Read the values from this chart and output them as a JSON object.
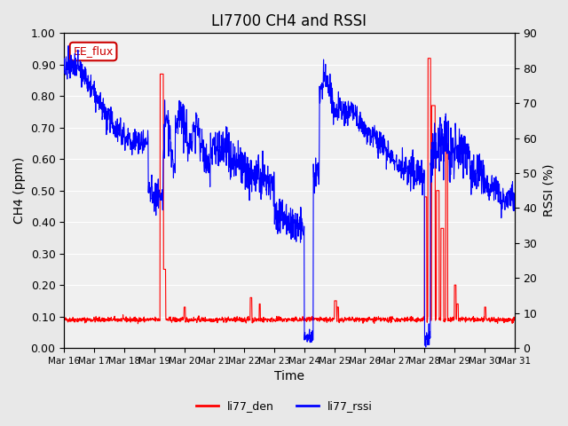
{
  "title": "LI7700 CH4 and RSSI",
  "xlabel": "Time",
  "ylabel_left": "CH4 (ppm)",
  "ylabel_right": "RSSI (%)",
  "ylim_left": [
    0.0,
    1.0
  ],
  "ylim_right": [
    0,
    90
  ],
  "yticks_left": [
    0.0,
    0.1,
    0.2,
    0.3,
    0.4,
    0.5,
    0.6,
    0.7,
    0.8,
    0.9,
    1.0
  ],
  "yticks_right": [
    0,
    10,
    20,
    30,
    40,
    50,
    60,
    70,
    80,
    90
  ],
  "xtick_labels": [
    "Mar 16",
    "Mar 17",
    "Mar 18",
    "Mar 19",
    "Mar 20",
    "Mar 21",
    "Mar 22",
    "Mar 23",
    "Mar 24",
    "Mar 25",
    "Mar 26",
    "Mar 27",
    "Mar 28",
    "Mar 29",
    "Mar 30",
    "Mar 31"
  ],
  "color_den": "#ff0000",
  "color_rssi": "#0000ff",
  "legend_label_den": "li77_den",
  "legend_label_rssi": "li77_rssi",
  "annotation_text": "EE_flux",
  "annotation_color": "#cc0000",
  "background_color": "#e8e8e8",
  "plot_bg_color": "#f0f0f0",
  "grid_color": "#ffffff",
  "title_fontsize": 12
}
